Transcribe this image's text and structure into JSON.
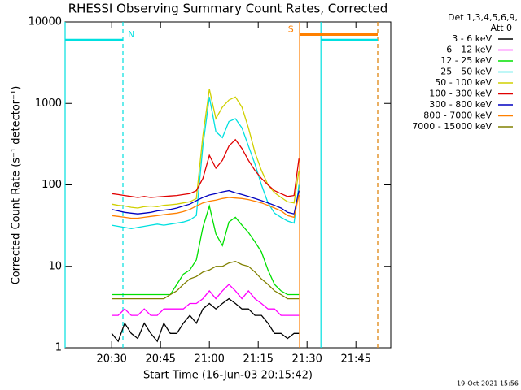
{
  "chart_data": {
    "type": "line",
    "title": "RHESSI Observing Summary Count Rates, Corrected",
    "xlabel": "Start Time (16-Jun-03 20:15:42)",
    "ylabel": "Corrected Count Rate (s⁻¹ detector⁻¹)",
    "legend_title": [
      "Det 1,3,4,5,6,9,",
      "Att 0"
    ],
    "footer": "19-Oct-2021 15:56",
    "log_y": true,
    "xlim": [
      1215.7,
      1315.7
    ],
    "ylim": [
      1,
      10000
    ],
    "yticks": [
      1,
      10,
      100,
      1000,
      10000
    ],
    "xticks": [
      {
        "value": 1230,
        "label": "20:30"
      },
      {
        "value": 1245,
        "label": "20:45"
      },
      {
        "value": 1260,
        "label": "21:00"
      },
      {
        "value": 1275,
        "label": "21:15"
      },
      {
        "value": 1290,
        "label": "21:30"
      },
      {
        "value": 1305,
        "label": "21:45"
      }
    ],
    "x": [
      1230,
      1232,
      1234,
      1236,
      1238,
      1240,
      1242,
      1244,
      1246,
      1248,
      1250,
      1252,
      1254,
      1256,
      1258,
      1260,
      1262,
      1264,
      1266,
      1268,
      1270,
      1272,
      1274,
      1276,
      1278,
      1280,
      1282,
      1284,
      1286,
      1287.5
    ],
    "series": [
      {
        "name": "3 - 6 keV",
        "color": "#000000",
        "values": [
          1.5,
          1.2,
          2,
          1.5,
          1.3,
          2,
          1.5,
          1.2,
          2,
          1.5,
          1.5,
          2,
          2.5,
          2,
          3,
          3.5,
          3,
          3.5,
          4,
          3.5,
          3,
          3,
          2.5,
          2.5,
          2,
          1.5,
          1.5,
          1.3,
          1.5,
          1.5
        ]
      },
      {
        "name": "6 - 12 keV",
        "color": "#ff00ff",
        "values": [
          2.5,
          2.5,
          3,
          2.5,
          2.5,
          3,
          2.5,
          2.5,
          3,
          3,
          3,
          3,
          3.5,
          3.5,
          4,
          5,
          4,
          5,
          6,
          5,
          4,
          5,
          4,
          3.5,
          3,
          3,
          2.5,
          2.5,
          2.5,
          2.5
        ]
      },
      {
        "name": "12 - 25 keV",
        "color": "#00e000",
        "values": [
          4.5,
          4.5,
          4.5,
          4.5,
          4.5,
          4.5,
          4.5,
          4.5,
          4.5,
          4.5,
          6,
          8,
          9,
          12,
          30,
          55,
          25,
          18,
          35,
          40,
          32,
          26,
          20,
          15,
          9,
          6,
          5,
          4.5,
          4.5,
          4.5
        ]
      },
      {
        "name": "25 - 50 keV",
        "color": "#00e0e0",
        "values": [
          32,
          31,
          30,
          29,
          30,
          31,
          32,
          33,
          32,
          33,
          34,
          35,
          37,
          42,
          300,
          1200,
          450,
          380,
          600,
          650,
          500,
          300,
          180,
          100,
          60,
          45,
          40,
          36,
          34,
          100
        ]
      },
      {
        "name": "50 - 100 keV",
        "color": "#d0d000",
        "values": [
          58,
          56,
          55,
          53,
          52,
          54,
          55,
          54,
          56,
          57,
          58,
          60,
          62,
          68,
          400,
          1500,
          650,
          900,
          1100,
          1200,
          900,
          500,
          250,
          150,
          100,
          80,
          70,
          62,
          60,
          150
        ]
      },
      {
        "name": "100 - 300 keV",
        "color": "#e00000",
        "values": [
          78,
          76,
          74,
          72,
          70,
          72,
          70,
          71,
          72,
          73,
          74,
          76,
          78,
          85,
          120,
          230,
          160,
          200,
          300,
          360,
          280,
          200,
          150,
          120,
          100,
          85,
          78,
          72,
          74,
          210
        ]
      },
      {
        "name": "300 - 800 keV",
        "color": "#0000c0",
        "values": [
          50,
          48,
          46,
          45,
          44,
          45,
          46,
          48,
          49,
          50,
          52,
          55,
          58,
          64,
          70,
          75,
          78,
          82,
          85,
          80,
          76,
          72,
          68,
          64,
          60,
          56,
          52,
          46,
          44,
          85
        ]
      },
      {
        "name": "800 - 7000 keV",
        "color": "#ff8000",
        "values": [
          42,
          41,
          40,
          39,
          39,
          40,
          41,
          42,
          43,
          44,
          45,
          47,
          50,
          55,
          60,
          63,
          65,
          68,
          70,
          69,
          68,
          66,
          63,
          60,
          56,
          52,
          48,
          42,
          40,
          75
        ]
      },
      {
        "name": "7000 - 15000 keV",
        "color": "#808000",
        "values": [
          4,
          4,
          4,
          4,
          4,
          4,
          4,
          4,
          4,
          4.5,
          5,
          6,
          7,
          7.5,
          8.5,
          9,
          10,
          10,
          11,
          11.5,
          10.5,
          10,
          8.5,
          7,
          6,
          5,
          4.5,
          4,
          4,
          4
        ]
      }
    ],
    "markers": [
      {
        "x": 1215.7,
        "color": "#00e0e0",
        "dashed": false
      },
      {
        "x": 1233.45,
        "color": "#00e0e0",
        "dashed": true
      },
      {
        "x": 1287.7,
        "color": "#ff8000",
        "dashed": false
      },
      {
        "x": 1294.25,
        "color": "#00e0e0",
        "dashed": false
      },
      {
        "x": 1311.7,
        "color": "#00e0e0",
        "dashed": true
      },
      {
        "x": 1311.7,
        "color": "#ff8000",
        "dashed": true
      }
    ],
    "bands": [
      {
        "x": [
          1215.7,
          1233.45
        ],
        "y": 6000,
        "color": "#00e0e0"
      },
      {
        "x": [
          1294.25,
          1311.7
        ],
        "y": 6000,
        "color": "#00e0e0"
      },
      {
        "x": [
          1287.7,
          1311.7
        ],
        "y": 7000,
        "color": "#ff8000"
      }
    ],
    "annotations": [
      {
        "text": "N",
        "x": 1236,
        "y": 6000,
        "color": "#00e0e0"
      },
      {
        "text": "S",
        "x": 1285,
        "y": 7000,
        "color": "#ff8000"
      }
    ]
  }
}
